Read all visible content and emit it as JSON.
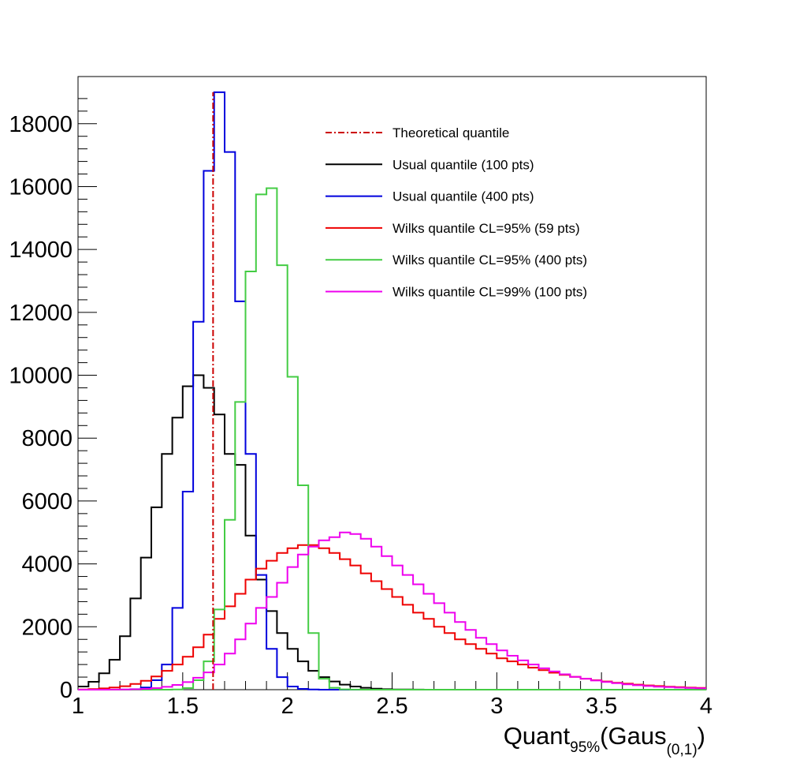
{
  "chart_data": {
    "type": "histogram",
    "xlabel": "Quant",
    "xlabel_sub1": "95%",
    "xlabel_mid": "(Gaus",
    "xlabel_sub2": "(0,1)",
    "xlabel_end": ")",
    "ylabel": "",
    "xlim": [
      1,
      4
    ],
    "ylim": [
      0,
      19500
    ],
    "grid": false,
    "legend_position": "top-right",
    "x_ticks": [
      "1",
      "1.5",
      "2",
      "2.5",
      "3",
      "3.5",
      "4"
    ],
    "y_ticks": [
      "0",
      "2000",
      "4000",
      "6000",
      "8000",
      "10000",
      "12000",
      "14000",
      "16000",
      "18000"
    ],
    "bin_edges_start": 1,
    "bin_width": 0.05,
    "theoretical_quantile": 1.645,
    "series": [
      {
        "name": "Theoretical quantile",
        "color": "#cc0000",
        "style": "dash-dot"
      },
      {
        "name": "Usual quantile (100 pts)",
        "color": "#000000",
        "values": [
          100,
          250,
          520,
          950,
          1700,
          2900,
          4200,
          5800,
          7500,
          8650,
          9650,
          10000,
          9600,
          8750,
          7500,
          7150,
          4900,
          3500,
          2500,
          1800,
          1300,
          900,
          600,
          400,
          260,
          160,
          100,
          60,
          30,
          15,
          8,
          4,
          2,
          1,
          0,
          0,
          0,
          0,
          0,
          0,
          0,
          0,
          0,
          0,
          0,
          0,
          0,
          0,
          0,
          0,
          0,
          0,
          0,
          0,
          0,
          0,
          0,
          0,
          0,
          0
        ]
      },
      {
        "name": "Usual quantile (400 pts)",
        "color": "#0000dd",
        "values": [
          0,
          0,
          0,
          0,
          2,
          15,
          70,
          300,
          800,
          2600,
          6300,
          11700,
          16500,
          19000,
          17100,
          12350,
          7500,
          3650,
          1300,
          400,
          100,
          25,
          5,
          1,
          0,
          0,
          0,
          0,
          0,
          0,
          0,
          0,
          0,
          0,
          0,
          0,
          0,
          0,
          0,
          0,
          0,
          0,
          0,
          0,
          0,
          0,
          0,
          0,
          0,
          0,
          0,
          0,
          0,
          0,
          0,
          0,
          0,
          0,
          0,
          0
        ]
      },
      {
        "name": "Wilks quantile CL=95% (59 pts)",
        "color": "#ee0000",
        "values": [
          5,
          20,
          40,
          70,
          110,
          180,
          280,
          420,
          600,
          800,
          1050,
          1350,
          1750,
          2250,
          2650,
          3050,
          3500,
          3850,
          4100,
          4350,
          4500,
          4600,
          4600,
          4500,
          4350,
          4150,
          3950,
          3700,
          3450,
          3200,
          2950,
          2700,
          2450,
          2250,
          2000,
          1800,
          1600,
          1450,
          1300,
          1150,
          1000,
          900,
          800,
          700,
          620,
          540,
          470,
          410,
          350,
          300,
          260,
          220,
          190,
          160,
          135,
          115,
          95,
          80,
          65,
          55
        ]
      },
      {
        "name": "Wilks quantile CL=95% (400 pts)",
        "color": "#44cc44",
        "values": [
          0,
          0,
          0,
          0,
          0,
          0,
          0,
          0,
          0,
          5,
          50,
          300,
          900,
          2550,
          5400,
          9150,
          13300,
          15750,
          15950,
          13500,
          9950,
          6500,
          1800,
          350,
          60,
          10,
          2,
          0,
          0,
          0,
          0,
          0,
          0,
          0,
          0,
          0,
          0,
          0,
          0,
          0,
          0,
          0,
          0,
          0,
          0,
          0,
          0,
          0,
          0,
          0,
          0,
          0,
          0,
          0,
          0,
          0,
          0,
          0,
          0,
          0
        ]
      },
      {
        "name": "Wilks quantile CL=99% (100 pts)",
        "color": "#ee00ee",
        "values": [
          0,
          0,
          0,
          2,
          5,
          12,
          25,
          50,
          90,
          150,
          240,
          380,
          550,
          800,
          1150,
          1600,
          2100,
          2600,
          2950,
          3400,
          3900,
          4300,
          4550,
          4750,
          4850,
          5000,
          4950,
          4800,
          4550,
          4250,
          3950,
          3650,
          3350,
          3050,
          2750,
          2450,
          2150,
          1900,
          1650,
          1450,
          1250,
          1080,
          930,
          800,
          680,
          580,
          490,
          410,
          350,
          290,
          245,
          205,
          170,
          140,
          115,
          95,
          80,
          65,
          52,
          42
        ]
      }
    ]
  }
}
